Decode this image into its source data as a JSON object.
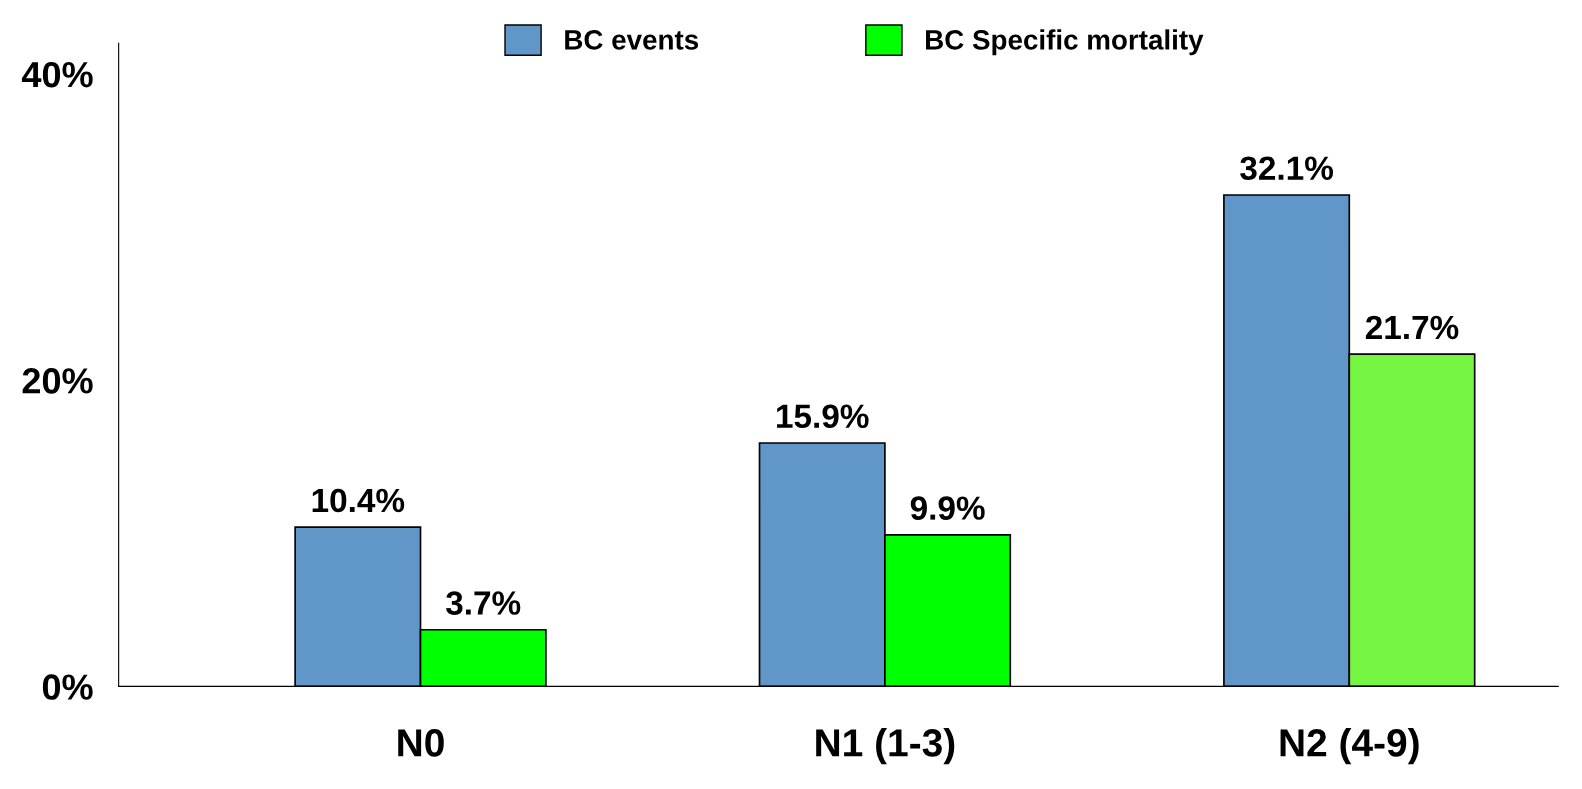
{
  "chart_data": {
    "type": "bar",
    "categories": [
      "N0",
      "N1 (1-3)",
      "N2 (4-9)"
    ],
    "series": [
      {
        "name": "BC events",
        "color": "#6096c8",
        "values": [
          10.4,
          15.9,
          32.1
        ],
        "value_labels": [
          "10.4%",
          "15.9%",
          "32.1%"
        ]
      },
      {
        "name": "BC Specific mortality",
        "color": "#00ff00",
        "colors": [
          "#00ff00",
          "#00ff00",
          "#76f542"
        ],
        "values": [
          3.7,
          9.9,
          21.7
        ],
        "value_labels": [
          "3.7%",
          "9.9%",
          "21.7%"
        ]
      }
    ],
    "ylim": [
      0,
      42
    ],
    "yticks": [
      {
        "value": 0,
        "label": "0%"
      },
      {
        "value": 20,
        "label": "20%"
      },
      {
        "value": 40,
        "label": "40%"
      }
    ],
    "grid": false,
    "legend": "top"
  }
}
